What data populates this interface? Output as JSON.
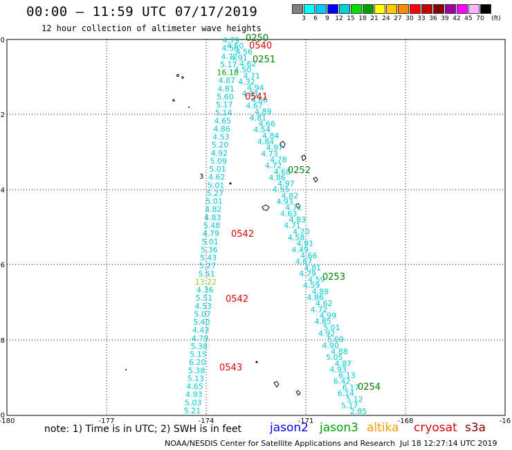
{
  "header": {
    "title": "00:00 – 11:59 UTC 07/17/2019",
    "subtitle": "12 hour collection of altimeter wave heights"
  },
  "legend": {
    "colors": [
      "#808080",
      "#00ffff",
      "#00c8ff",
      "#0000ff",
      "#00d2d2",
      "#00e000",
      "#00a000",
      "#ffff00",
      "#ffc800",
      "#ff8c00",
      "#ff0000",
      "#c80000",
      "#8b0000",
      "#a000a0",
      "#ff00ff",
      "#ffb4ff",
      "#000000"
    ],
    "labels": [
      "3",
      "6",
      "9",
      "12",
      "15",
      "18",
      "21",
      "24",
      "27",
      "30",
      "33",
      "36",
      "39",
      "42",
      "45",
      "70"
    ],
    "unit": "(ft)"
  },
  "axes": {
    "x_ticks": [
      "-180",
      "-177",
      "-174",
      "-171",
      "-168",
      "-16"
    ],
    "y_ticks": [
      "0",
      "-2",
      "-4",
      "-6",
      "-8",
      "-10"
    ]
  },
  "labels": {
    "left_track": [
      "4.79",
      "4.56",
      "4.72",
      "5.17",
      "16.18",
      "4.87",
      "4.81",
      "5.60",
      "5.17",
      "5.14",
      "4.65",
      "4.86",
      "4.53",
      "5.20",
      "4.92",
      "5.09",
      "5.01",
      "4.62",
      "5.01",
      "5.27",
      "5.01",
      "4.82",
      "4.83",
      "5.48",
      "4.79",
      "5.01",
      "5.36",
      "5.43",
      "5.27",
      "5.51",
      "13.22",
      "4.36",
      "5.51",
      "4.53",
      "5.07",
      "5.40",
      "4.43",
      "4.79",
      "5.38",
      "5.15",
      "6.20",
      "5.38",
      "5.13",
      "4.65",
      "4.93",
      "5.03",
      "5.21"
    ],
    "left_track_green": "16.18",
    "left_track_yellow": "13.22",
    "right_tracks": [
      "4.50",
      "4.56",
      "4.91",
      "4.62",
      "4.50",
      "4.71",
      "4.32",
      "4.94",
      "4.91",
      "4.66",
      "4.67",
      "4.89",
      "4.81",
      "4.66",
      "4.54",
      "4.84",
      "4.84",
      "4.97",
      "4.73",
      "4.78",
      "4.72",
      "4.68",
      "4.86",
      "4.97",
      "4.55",
      "4.82",
      "4.93",
      "4.71",
      "4.63",
      "4.83",
      "4.71",
      "4.70",
      "4.58",
      "4.91",
      "4.49",
      "4.66",
      "4.67",
      "4.81",
      "4.79",
      "4.59",
      "4.59",
      "4.88",
      "4.86",
      "4.62",
      "4.72",
      "4.99",
      "4.85",
      "5.01",
      "4.92",
      "5.09",
      "4.90",
      "4.88",
      "5.05",
      "4.87",
      "4.93",
      "6.13",
      "6.42",
      "6.17",
      "6.14",
      "5.12",
      "5.17",
      "2.85"
    ],
    "time_labels": [
      {
        "text": "0250",
        "color": "#008000"
      },
      {
        "text": "0540",
        "color": "#e00000"
      },
      {
        "text": "0251",
        "color": "#008000"
      },
      {
        "text": "0541",
        "color": "#e00000"
      },
      {
        "text": "0252",
        "color": "#008000"
      },
      {
        "text": "0542",
        "color": "#e00000"
      },
      {
        "text": "0253",
        "color": "#008000"
      },
      {
        "text": "0542",
        "color": "#e00000"
      },
      {
        "text": "0543",
        "color": "#e00000"
      },
      {
        "text": "0254",
        "color": "#008000"
      }
    ],
    "island_digit": "3"
  },
  "note": "note: 1) Time is in UTC; 2) SWH is in feet",
  "satellites": [
    {
      "name": "jason2",
      "color": "#0000ff"
    },
    {
      "name": "jason3",
      "color": "#00a000"
    },
    {
      "name": "altika",
      "color": "#ff9900"
    },
    {
      "name": "cryosat",
      "color": "#e00000"
    },
    {
      "name": "s3a",
      "color": "#800000"
    }
  ],
  "footer": {
    "credit": "NOAA/NESDIS Center for Satellite Applications and Research",
    "timestamp": "Jul 18 12:27:14 UTC 2019"
  }
}
